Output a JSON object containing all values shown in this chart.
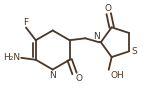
{
  "bg_color": "#ffffff",
  "bond_color": "#4a3728",
  "atom_color": "#4a3728",
  "line_width": 1.3,
  "font_size": 6.5,
  "fig_width": 1.65,
  "fig_height": 1.0,
  "dpi": 100,
  "xlim": [
    0,
    165
  ],
  "ylim": [
    0,
    100
  ]
}
